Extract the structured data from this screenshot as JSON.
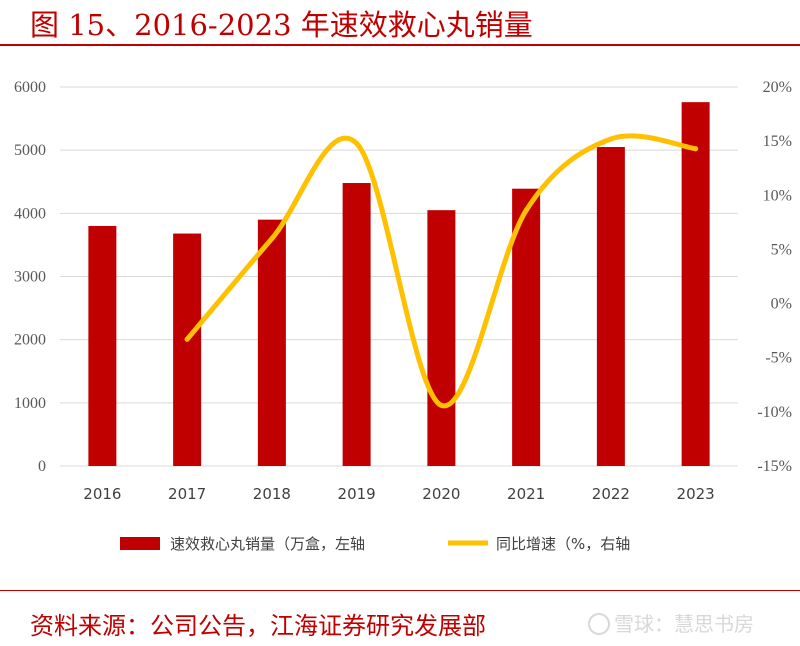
{
  "header": {
    "title": "图 15、2016-2023 年速效救心丸销量"
  },
  "footer": {
    "source": "资料来源：公司公告，江海证券研究发展部",
    "watermark": "雪球：慧思书房"
  },
  "colors": {
    "accent": "#c00000",
    "bar": "#c00000",
    "line": "#ffc000",
    "grid": "#d9d9d9"
  },
  "chart_data": {
    "type": "bar",
    "categories": [
      "2016",
      "2017",
      "2018",
      "2019",
      "2020",
      "2021",
      "2022",
      "2023"
    ],
    "series": [
      {
        "name": "速效救心丸销量（万盒，左轴",
        "type": "bar",
        "axis": "left",
        "values": [
          3800,
          3680,
          3900,
          4480,
          4050,
          4390,
          5050,
          5760
        ]
      },
      {
        "name": "同比增速（%，右轴",
        "type": "line",
        "axis": "right",
        "values": [
          null,
          -3.3,
          6.0,
          14.8,
          -9.4,
          8.6,
          15.2,
          14.3
        ]
      }
    ],
    "y_left": {
      "min": 0,
      "max": 6000,
      "ticks": [
        "0",
        "1000",
        "2000",
        "3000",
        "4000",
        "5000",
        "6000"
      ]
    },
    "y_right": {
      "min": -15,
      "max": 20,
      "ticks": [
        "-15%",
        "-10%",
        "-5%",
        "0%",
        "5%",
        "10%",
        "15%",
        "20%"
      ]
    },
    "grid": true,
    "legend_position": "bottom"
  }
}
